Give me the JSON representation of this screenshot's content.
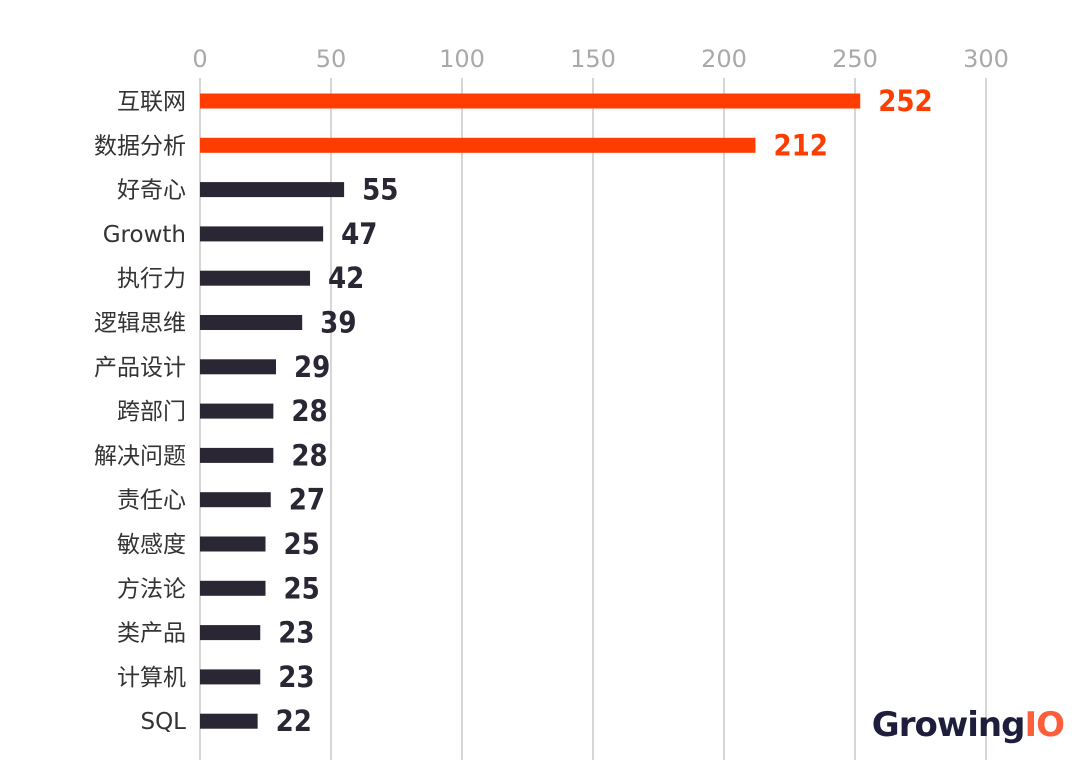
{
  "chart_data": {
    "type": "bar",
    "orientation": "horizontal",
    "categories": [
      "互联网",
      "数据分析",
      "好奇心",
      "Growth",
      "执行力",
      "逻辑思维",
      "产品设计",
      "跨部门",
      "解决问题",
      "责任心",
      "敏感度",
      "方法论",
      "类产品",
      "计算机",
      "SQL"
    ],
    "values": [
      252,
      212,
      55,
      47,
      42,
      39,
      29,
      28,
      28,
      27,
      25,
      25,
      23,
      23,
      22
    ],
    "value_labels": [
      "252",
      "212",
      "55",
      "47",
      "42",
      "39",
      "29",
      "28",
      "28",
      "27",
      "25",
      "25",
      "23",
      "23",
      "22"
    ],
    "x_ticks": [
      "0",
      "50",
      "100",
      "150",
      "200",
      "250",
      "300"
    ],
    "xlim": [
      0,
      300
    ],
    "xaxis_position": "top",
    "grid": true,
    "legend": "none",
    "highlight_count": 2,
    "colors": {
      "highlight": "#ff3d00",
      "default": "#2a2633",
      "grid": "#d6d6d6",
      "tick": "#a9a9a9",
      "label": "#333333"
    }
  },
  "logo": {
    "part1": "Growing",
    "part2": "IO",
    "color1": "#1e1e3c",
    "color2": "#fc5f3a"
  }
}
